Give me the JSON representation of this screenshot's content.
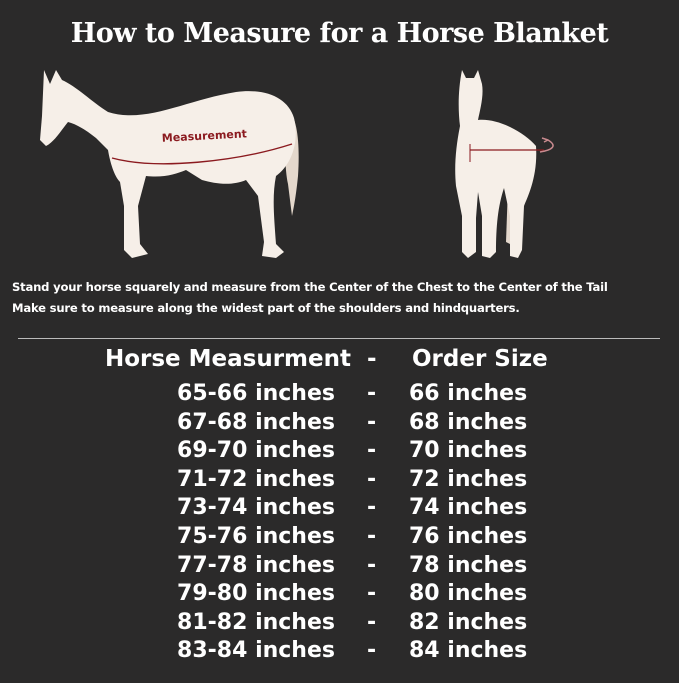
{
  "title": "How to Measure for a Horse Blanket",
  "illustration": {
    "side_label": "Measurement",
    "accent_color": "#8b1a1f",
    "horse_color": "#f6efe8"
  },
  "instructions": [
    "Stand your horse squarely and measure from the Center of the Chest to the Center of the Tail",
    "Make sure to measure along the widest part of the shoulders and hindquarters."
  ],
  "table": {
    "headers": {
      "measurement": "Horse Measurment",
      "separator": "-",
      "size": "Order Size"
    },
    "rows": [
      {
        "measurement": "65-66 inches",
        "separator": "-",
        "size": "66 inches"
      },
      {
        "measurement": "67-68 inches",
        "separator": "-",
        "size": "68 inches"
      },
      {
        "measurement": "69-70 inches",
        "separator": "-",
        "size": "70 inches"
      },
      {
        "measurement": "71-72 inches",
        "separator": "-",
        "size": "72 inches"
      },
      {
        "measurement": "73-74 inches",
        "separator": "-",
        "size": "74 inches"
      },
      {
        "measurement": "75-76 inches",
        "separator": "-",
        "size": "76 inches"
      },
      {
        "measurement": "77-78 inches",
        "separator": "-",
        "size": "78 inches"
      },
      {
        "measurement": "79-80 inches",
        "separator": "-",
        "size": "80 inches"
      },
      {
        "measurement": "81-82 inches",
        "separator": "-",
        "size": "82 inches"
      },
      {
        "measurement": "83-84 inches",
        "separator": "-",
        "size": "84 inches"
      }
    ]
  }
}
